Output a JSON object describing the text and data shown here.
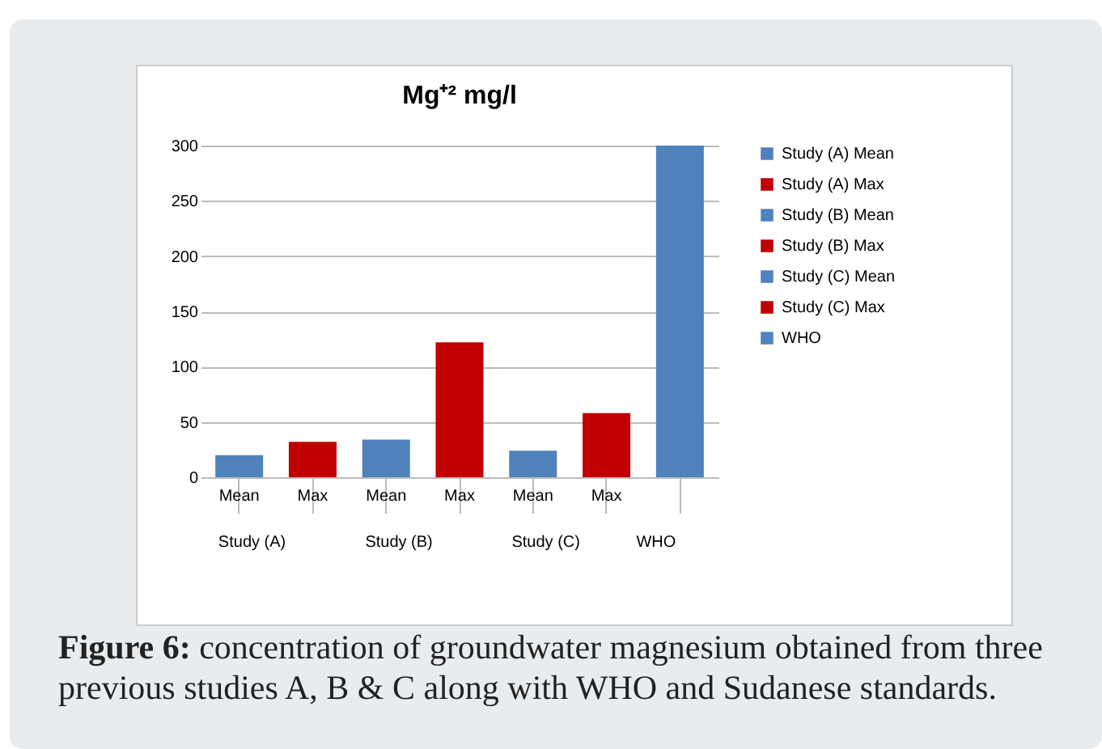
{
  "chart_data": {
    "type": "bar",
    "title": "Mg⁺² mg/l",
    "categories": [
      "Mean",
      "Max",
      "Mean",
      "Max",
      "Mean",
      "Max",
      null
    ],
    "series": [
      {
        "name": "Study (A) Mean",
        "color": "#4f81bd",
        "values": [
          20,
          null,
          null,
          null,
          null,
          null,
          null
        ]
      },
      {
        "name": "Study (A) Max",
        "color": "#c00000",
        "values": [
          null,
          32,
          null,
          null,
          null,
          null,
          null
        ]
      },
      {
        "name": "Study  (B) Mean",
        "color": "#4f81bd",
        "values": [
          null,
          null,
          34,
          null,
          null,
          null,
          null
        ]
      },
      {
        "name": "Study  (B) Max",
        "color": "#c00000",
        "values": [
          null,
          null,
          null,
          122,
          null,
          null,
          null
        ]
      },
      {
        "name": "Study (C) Mean",
        "color": "#4f81bd",
        "values": [
          null,
          null,
          null,
          null,
          24,
          null,
          null
        ]
      },
      {
        "name": "Study (C) Max",
        "color": "#c00000",
        "values": [
          null,
          null,
          null,
          null,
          null,
          58,
          null
        ]
      },
      {
        "name": "WHO",
        "color": "#4f81bd",
        "values": [
          null,
          null,
          null,
          null,
          null,
          null,
          300
        ]
      }
    ],
    "ylim": [
      0,
      300
    ],
    "yticks": [
      0,
      50,
      100,
      150,
      200,
      250,
      300
    ],
    "grid": "y",
    "legend": "right",
    "annotations": [
      "Study (A)",
      "Study  (B)",
      "Study (C)",
      "WHO",
      "Figure 6: concentration of groundwater magnesium obtained from three previous studies A, B & C along with WHO and Sudanese standards."
    ]
  }
}
